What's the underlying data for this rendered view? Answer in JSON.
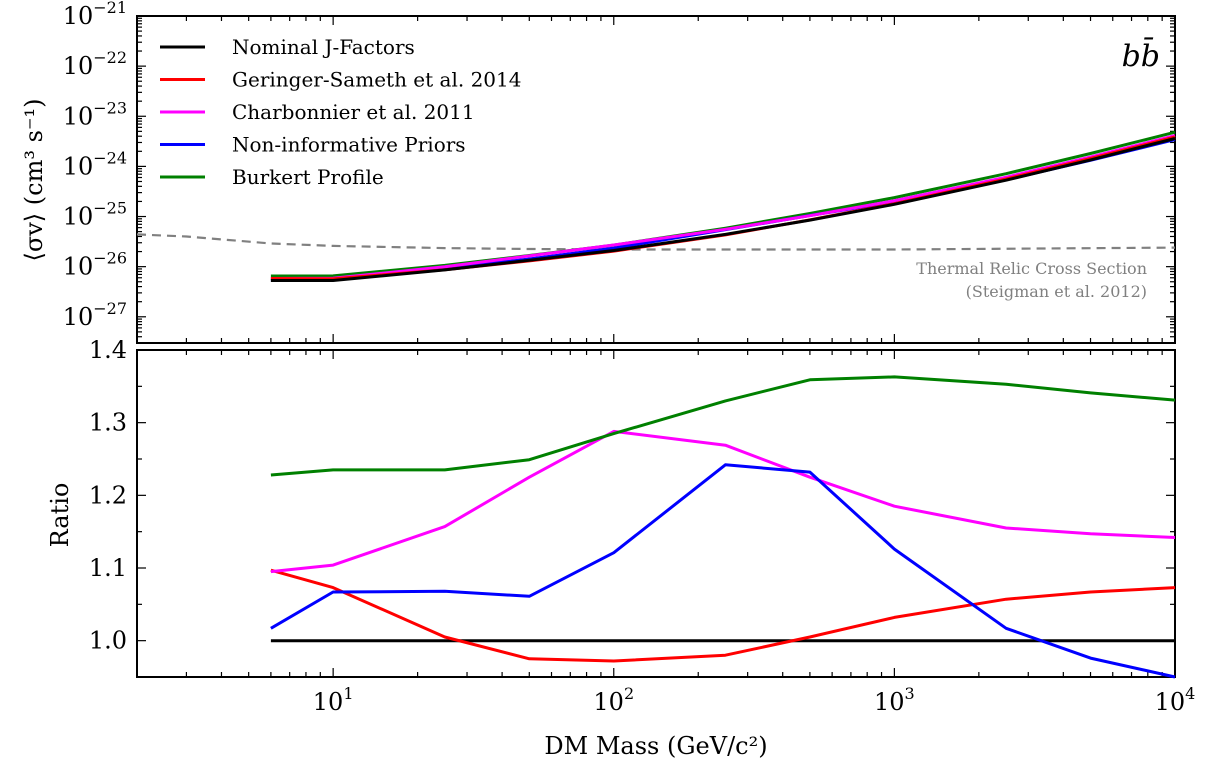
{
  "chart_data": {
    "type": "line",
    "channel_label": "bb̄",
    "xlabel": "DM Mass (GeV/c²)",
    "xscale": "log",
    "xlim": [
      2,
      10000
    ],
    "x_ticks": [
      {
        "value": 10,
        "base": "10",
        "exp": "1"
      },
      {
        "value": 100,
        "base": "10",
        "exp": "2"
      },
      {
        "value": 1000,
        "base": "10",
        "exp": "3"
      },
      {
        "value": 10000,
        "base": "10",
        "exp": "4"
      }
    ],
    "legend_placement": "upper-left",
    "grid": false,
    "top_panel": {
      "ylabel": "⟨σv⟩ (cm³ s⁻¹)",
      "yscale": "log",
      "ylim": [
        3e-28,
        1e-21
      ],
      "y_ticks": [
        {
          "value": 1e-27,
          "base": "10",
          "exp": "−27"
        },
        {
          "value": 1e-26,
          "base": "10",
          "exp": "−26"
        },
        {
          "value": 1e-25,
          "base": "10",
          "exp": "−25"
        },
        {
          "value": 1e-24,
          "base": "10",
          "exp": "−24"
        },
        {
          "value": 1e-23,
          "base": "10",
          "exp": "−23"
        },
        {
          "value": 1e-22,
          "base": "10",
          "exp": "−22"
        },
        {
          "value": 1e-21,
          "base": "10",
          "exp": "−21"
        }
      ],
      "x": [
        6,
        10,
        25,
        50,
        100,
        250,
        500,
        1000,
        2500,
        5000,
        10000
      ],
      "series": [
        {
          "name": "Nominal J-Factors",
          "color": "#000000",
          "values": [
            5.3e-27,
            5.3e-27,
            8.6e-27,
            1.34e-26,
            2.1e-26,
            4.4e-26,
            8.5e-26,
            1.75e-25,
            5.3e-25,
            1.35e-24,
            3.6e-24
          ]
        },
        {
          "name": "Geringer-Sameth et al. 2014",
          "color": "#ff0000",
          "values": [
            5.8e-27,
            5.7e-27,
            8.65e-27,
            1.3e-26,
            2.04e-26,
            4.3e-26,
            8.55e-26,
            1.8e-25,
            5.6e-25,
            1.44e-24,
            3.86e-24
          ]
        },
        {
          "name": "Charbonnier et al. 2011",
          "color": "#ff00ff",
          "values": [
            5.8e-27,
            5.85e-27,
            9.95e-27,
            1.64e-26,
            2.7e-26,
            5.57e-26,
            1.04e-25,
            2.07e-25,
            6.1e-25,
            1.55e-24,
            4.11e-24
          ]
        },
        {
          "name": "Non-informative Priors",
          "color": "#0000ff",
          "values": [
            5.4e-27,
            5.65e-27,
            9.2e-27,
            1.42e-26,
            2.35e-26,
            5.46e-26,
            1.05e-25,
            1.97e-25,
            5.4e-25,
            1.32e-24,
            3.42e-24
          ]
        },
        {
          "name": "Burkert Profile",
          "color": "#008000",
          "values": [
            6.5e-27,
            6.55e-27,
            1.06e-26,
            1.67e-26,
            2.69e-26,
            5.85e-26,
            1.15e-25,
            2.39e-25,
            7.15e-25,
            1.81e-24,
            4.8e-24
          ]
        }
      ],
      "reference_curve": {
        "color": "#808080",
        "style": "dashed",
        "x": [
          2,
          3,
          6,
          10,
          25,
          50,
          100,
          250,
          500,
          1000,
          10000
        ],
        "values": [
          4.4e-26,
          4e-26,
          2.9e-26,
          2.6e-26,
          2.35e-26,
          2.25e-26,
          2.2e-26,
          2.2e-26,
          2.2e-26,
          2.2e-26,
          2.4e-26
        ]
      },
      "annotation": [
        "Thermal Relic Cross Section",
        "(Steigman et al. 2012)"
      ]
    },
    "bottom_panel": {
      "ylabel": "Ratio",
      "yscale": "linear",
      "ylim": [
        0.95,
        1.4
      ],
      "y_ticks": [
        "1.0",
        "1.1",
        "1.2",
        "1.3",
        "1.4"
      ],
      "x": [
        6,
        10,
        25,
        50,
        100,
        250,
        500,
        1000,
        2500,
        5000,
        10000
      ],
      "series": [
        {
          "name": "Nominal J-Factors",
          "color": "#000000",
          "values": [
            1.0,
            1.0,
            1.0,
            1.0,
            1.0,
            1.0,
            1.0,
            1.0,
            1.0,
            1.0,
            1.0
          ]
        },
        {
          "name": "Geringer-Sameth et al. 2014",
          "color": "#ff0000",
          "values": [
            1.097,
            1.073,
            1.005,
            0.975,
            0.972,
            0.98,
            1.005,
            1.032,
            1.057,
            1.067,
            1.073
          ]
        },
        {
          "name": "Charbonnier et al. 2011",
          "color": "#ff00ff",
          "values": [
            1.095,
            1.104,
            1.157,
            1.225,
            1.288,
            1.269,
            1.225,
            1.185,
            1.155,
            1.147,
            1.142
          ]
        },
        {
          "name": "Non-informative Priors",
          "color": "#0000ff",
          "values": [
            1.017,
            1.067,
            1.068,
            1.061,
            1.121,
            1.242,
            1.232,
            1.126,
            1.017,
            0.976,
            0.95
          ]
        },
        {
          "name": "Burkert Profile",
          "color": "#008000",
          "values": [
            1.228,
            1.235,
            1.235,
            1.249,
            1.285,
            1.33,
            1.359,
            1.363,
            1.353,
            1.341,
            1.331
          ]
        }
      ]
    }
  }
}
